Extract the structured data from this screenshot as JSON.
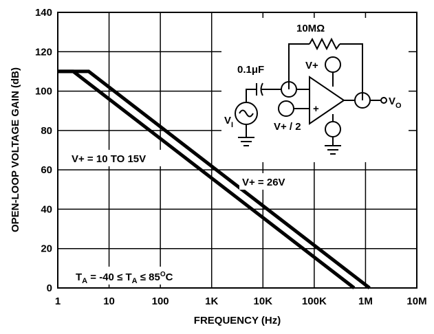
{
  "chart_data": {
    "type": "line",
    "title": "",
    "xlabel": "FREQUENCY (Hz)",
    "ylabel": "OPEN-LOOP VOLTAGE GAIN (dB)",
    "x_scale": "log",
    "xlim": [
      1,
      10000000
    ],
    "ylim": [
      0,
      140
    ],
    "grid": true,
    "x_ticks": [
      {
        "value": 1,
        "label": "1"
      },
      {
        "value": 10,
        "label": "10"
      },
      {
        "value": 100,
        "label": "100"
      },
      {
        "value": 1000,
        "label": "1K"
      },
      {
        "value": 10000,
        "label": "10K"
      },
      {
        "value": 100000,
        "label": "100K"
      },
      {
        "value": 1000000,
        "label": "1M"
      },
      {
        "value": 10000000,
        "label": "10M"
      }
    ],
    "y_ticks": [
      {
        "value": 0,
        "label": "0"
      },
      {
        "value": 20,
        "label": "20"
      },
      {
        "value": 40,
        "label": "40"
      },
      {
        "value": 60,
        "label": "60"
      },
      {
        "value": 80,
        "label": "80"
      },
      {
        "value": 100,
        "label": "100"
      },
      {
        "value": 120,
        "label": "120"
      },
      {
        "value": 140,
        "label": "140"
      }
    ],
    "series": [
      {
        "name": "V+ = 10 TO 15V",
        "points": [
          [
            1,
            110
          ],
          [
            2,
            110
          ],
          [
            600000,
            0
          ]
        ]
      },
      {
        "name": "V+ = 26V",
        "points": [
          [
            1,
            110
          ],
          [
            4,
            110
          ],
          [
            1200000,
            0
          ]
        ]
      }
    ],
    "annotations": {
      "supply_low": "V+ = 10 TO 15V",
      "supply_high": "V+ = 26V",
      "temp_prefix": "T",
      "temp_sub": "A",
      "temp_mid": " = -40 ≤ T",
      "temp_sub2": "A",
      "temp_suffix": " ≤ 85",
      "temp_deg": "O",
      "temp_unit": "C"
    },
    "circuit": {
      "feedback_resistor": "10MΩ",
      "input_cap": "0.1μF",
      "supply_pin": "V+",
      "ref_pin": "V+ / 2",
      "input_source": "V",
      "input_source_sub": "I",
      "output": "V",
      "output_sub": "O",
      "minus": "-",
      "plus": "+"
    },
    "line_color": "#000000"
  }
}
